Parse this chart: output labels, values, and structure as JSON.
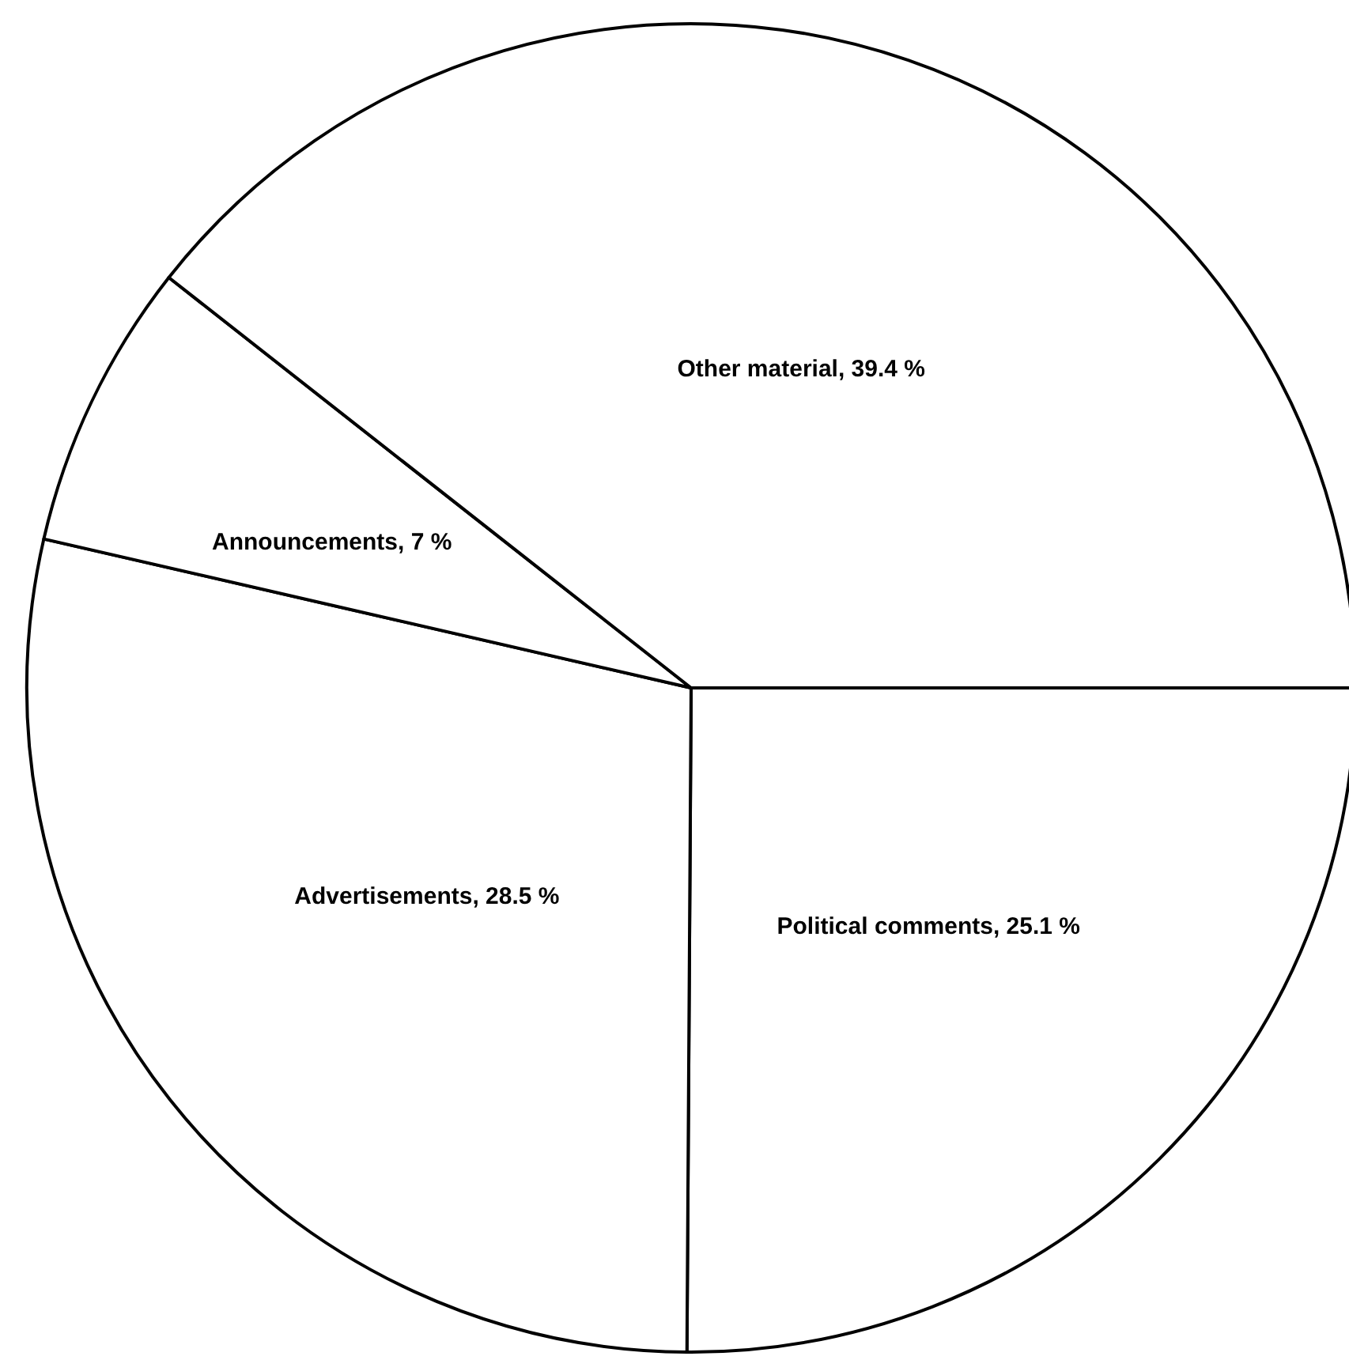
{
  "chart_data": {
    "type": "pie",
    "categories": [
      "Political comments",
      "Advertisements",
      "Announcements",
      "Other material"
    ],
    "values": [
      25.1,
      28.5,
      7,
      39.4
    ],
    "value_labels": [
      "25.1 %",
      "28.5 %",
      "7 %",
      "39.4 %"
    ],
    "colors": [
      "#ffffff",
      "#ffffff",
      "#ffffff",
      "#ffffff"
    ],
    "legend": false
  }
}
